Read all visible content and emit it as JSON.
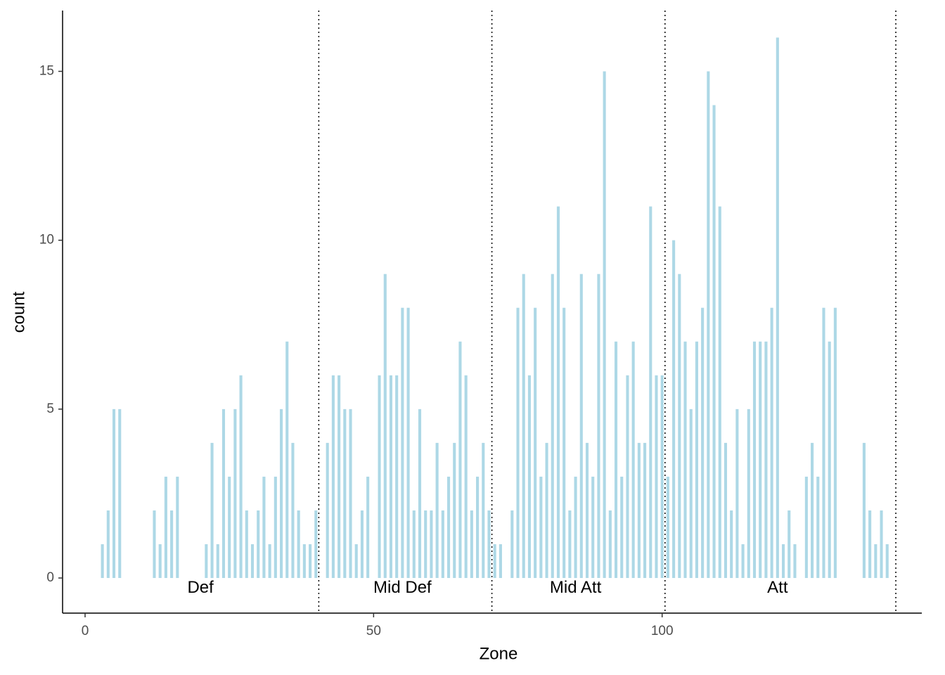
{
  "chart_data": {
    "type": "bar",
    "x_label": "Zone",
    "y_label": "count",
    "x": [
      3,
      4,
      5,
      6,
      12,
      13,
      14,
      15,
      16,
      21,
      22,
      23,
      24,
      25,
      26,
      27,
      28,
      29,
      30,
      31,
      32,
      33,
      34,
      35,
      36,
      37,
      38,
      39,
      40,
      42,
      43,
      44,
      45,
      46,
      47,
      48,
      49,
      51,
      52,
      53,
      54,
      55,
      56,
      57,
      58,
      59,
      60,
      61,
      62,
      63,
      64,
      65,
      66,
      67,
      68,
      69,
      70,
      71,
      72,
      74,
      75,
      76,
      77,
      78,
      79,
      80,
      81,
      82,
      83,
      84,
      85,
      86,
      87,
      88,
      89,
      90,
      91,
      92,
      93,
      94,
      95,
      96,
      97,
      98,
      99,
      100,
      101,
      102,
      103,
      104,
      105,
      106,
      107,
      108,
      109,
      110,
      111,
      112,
      113,
      114,
      115,
      116,
      117,
      118,
      119,
      120,
      121,
      122,
      123,
      125,
      126,
      127,
      128,
      129,
      130,
      135,
      136,
      137,
      138,
      139
    ],
    "values": [
      1,
      2,
      5,
      5,
      2,
      1,
      3,
      2,
      3,
      1,
      4,
      1,
      5,
      3,
      5,
      6,
      2,
      1,
      2,
      3,
      1,
      3,
      5,
      7,
      4,
      2,
      1,
      1,
      2,
      4,
      6,
      6,
      5,
      5,
      1,
      2,
      3,
      6,
      9,
      6,
      6,
      8,
      8,
      2,
      5,
      2,
      2,
      4,
      2,
      3,
      4,
      7,
      6,
      2,
      3,
      4,
      2,
      1,
      1,
      2,
      8,
      9,
      6,
      8,
      3,
      4,
      9,
      11,
      8,
      2,
      3,
      9,
      4,
      3,
      9,
      15,
      2,
      7,
      3,
      6,
      7,
      4,
      4,
      11,
      6,
      6,
      3,
      10,
      9,
      7,
      5,
      7,
      8,
      15,
      14,
      11,
      4,
      2,
      5,
      1,
      5,
      7,
      7,
      7,
      8,
      16,
      1,
      2,
      1,
      3,
      4,
      3,
      8,
      7,
      8,
      4,
      2,
      1,
      2,
      1
    ],
    "color": "#add8e6",
    "vlines": [
      40.5,
      70.5,
      100.5,
      140.5
    ],
    "annotations": [
      {
        "text": "Def",
        "x": 20,
        "y": -0.3
      },
      {
        "text": "Mid Def",
        "x": 55,
        "y": -0.3
      },
      {
        "text": "Mid Att",
        "x": 85,
        "y": -0.3
      },
      {
        "text": "Att",
        "x": 120,
        "y": -0.3
      }
    ],
    "xlim": [
      -3.9,
      145
    ],
    "ylim": [
      -1.04,
      16.8
    ],
    "xticks": [
      0,
      50,
      100
    ],
    "yticks": [
      0,
      5,
      10,
      15
    ],
    "grid": false
  }
}
